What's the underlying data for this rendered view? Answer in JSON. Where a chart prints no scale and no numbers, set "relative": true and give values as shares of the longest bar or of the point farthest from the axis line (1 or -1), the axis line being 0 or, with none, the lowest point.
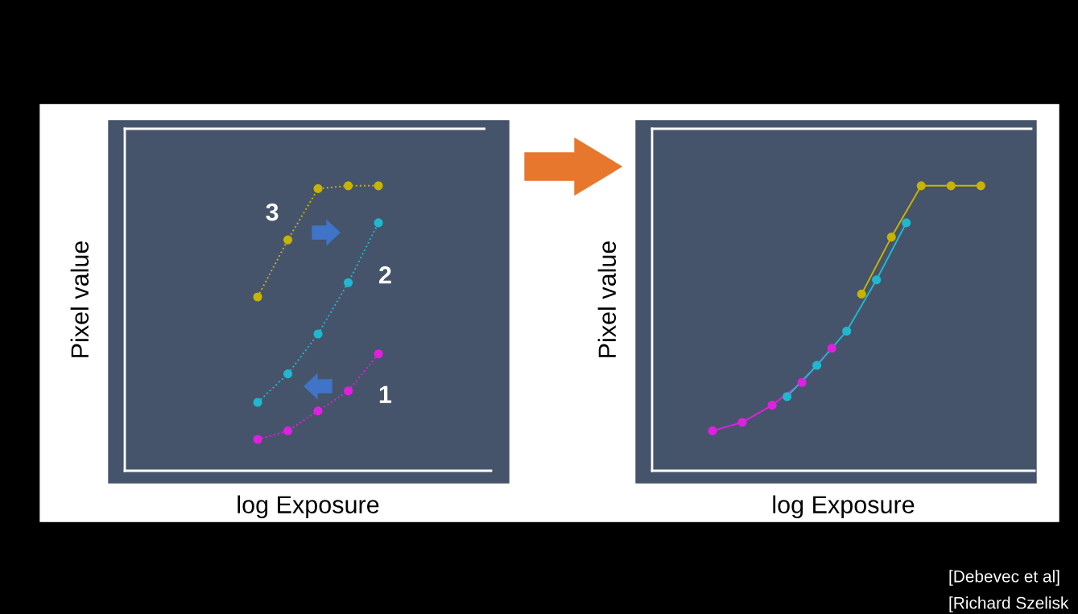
{
  "chart_data": [
    {
      "type": "line",
      "relative": true,
      "xlabel": "log Exposure",
      "ylabel": "Pixel value",
      "marker": "circle",
      "line_style": "dotted",
      "grid": false,
      "legend": false,
      "categories": [
        null,
        null,
        null,
        null,
        null
      ],
      "series": [
        {
          "name": "1",
          "color": "#e020e0",
          "values": [
            0.11,
            0.14,
            0.21,
            0.28,
            0.41
          ]
        },
        {
          "name": "2",
          "color": "#20b8d0",
          "values": [
            0.24,
            0.34,
            0.48,
            0.66,
            0.87
          ]
        },
        {
          "name": "3",
          "color": "#c8b400",
          "values": [
            0.61,
            0.81,
            0.99,
            1,
            1
          ]
        }
      ]
    },
    {
      "type": "line",
      "relative": true,
      "xlabel": "log Exposure",
      "ylabel": "Pixel value",
      "marker": "circle",
      "line_style": "solid",
      "grid": false,
      "legend": false,
      "categories": [
        null,
        null,
        null,
        null,
        null,
        null,
        null,
        null,
        null,
        null,
        null,
        null,
        null,
        null,
        null,
        null,
        null,
        null,
        null
      ],
      "series": [
        {
          "color": "#e020e0",
          "values": [
            0.14,
            null,
            0.17,
            null,
            0.23,
            null,
            0.31,
            null,
            0.43,
            null,
            null,
            null,
            null,
            null,
            null,
            null,
            null,
            null,
            null
          ]
        },
        {
          "color": "#20b8d0",
          "values": [
            null,
            null,
            null,
            null,
            null,
            0.26,
            null,
            0.37,
            null,
            0.49,
            null,
            0.67,
            null,
            0.87,
            null,
            null,
            null,
            null,
            null
          ]
        },
        {
          "color": "#c8b400",
          "values": [
            null,
            null,
            null,
            null,
            null,
            null,
            null,
            null,
            null,
            null,
            0.62,
            null,
            0.82,
            null,
            1,
            null,
            1,
            null,
            1
          ]
        }
      ],
      "annotations": [
        "[Debevec et al]",
        "[Richard Szelisk"
      ]
    }
  ]
}
